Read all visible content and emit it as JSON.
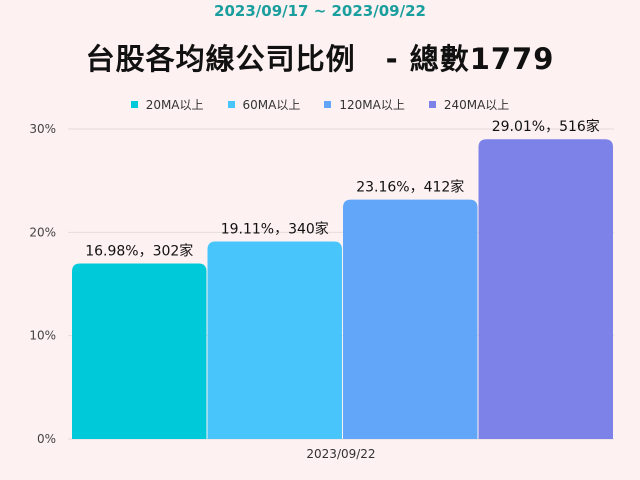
{
  "subtitle": "2023/09/17 ~ 2023/09/22",
  "title": "台股各均線公司比例　-  總數1779",
  "chart_data": {
    "type": "bar",
    "categories": [
      "2023/09/22"
    ],
    "series": [
      {
        "name": "20MA以上",
        "values": [
          16.98
        ],
        "label": "16.98%，302家",
        "color": "#00c9d9"
      },
      {
        "name": "60MA以上",
        "values": [
          19.11
        ],
        "label": "19.11%，340家",
        "color": "#48c6fb"
      },
      {
        "name": "120MA以上",
        "values": [
          23.16
        ],
        "label": "23.16%，412家",
        "color": "#62a6f9"
      },
      {
        "name": "240MA以上",
        "values": [
          29.01
        ],
        "label": "29.01%，516家",
        "color": "#7d82e8"
      }
    ],
    "yticks": [
      "0%",
      "10%",
      "20%",
      "30%"
    ],
    "ylim": [
      0,
      30
    ],
    "grid": true,
    "legend": "top"
  }
}
